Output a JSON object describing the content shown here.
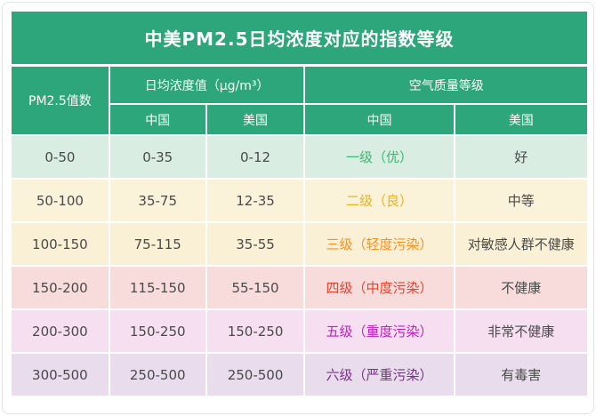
{
  "chart_data": {
    "type": "table",
    "title": "中美PM2.5日均浓度对应的指数等级",
    "header": {
      "pm25_col": "PM2.5值数",
      "concentration_group": "日均浓度值（μg/m³）",
      "quality_group": "空气质量等级",
      "conc_cn": "中国",
      "conc_us": "美国",
      "qual_cn": "中国",
      "qual_us": "美国"
    },
    "rows": [
      {
        "pm25": "0-50",
        "cn_conc": "0-35",
        "us_conc": "0-12",
        "cn_level": "一级（优）",
        "us_level": "好",
        "bg": "#d9ede3",
        "level_color": "#3cb873"
      },
      {
        "pm25": "50-100",
        "cn_conc": "35-75",
        "us_conc": "12-35",
        "cn_level": "二级（良）",
        "us_level": "中等",
        "bg": "#fbf2da",
        "level_color": "#e3b51f"
      },
      {
        "pm25": "100-150",
        "cn_conc": "75-115",
        "us_conc": "35-55",
        "cn_level": "三级（轻度污染）",
        "us_level": "对敏感人群不健康",
        "bg": "#faf0d6",
        "level_color": "#f6921e"
      },
      {
        "pm25": "150-200",
        "cn_conc": "115-150",
        "us_conc": "55-150",
        "cn_level": "四级（中度污染）",
        "us_level": "不健康",
        "bg": "#f8dcdc",
        "level_color": "#e8432a"
      },
      {
        "pm25": "200-300",
        "cn_conc": "150-250",
        "us_conc": "150-250",
        "cn_level": "五级（重度污染）",
        "us_level": "非常不健康",
        "bg": "#f5dff1",
        "level_color": "#bc22bc"
      },
      {
        "pm25": "300-500",
        "cn_conc": "250-500",
        "us_conc": "250-500",
        "cn_level": "六级（严重污染）",
        "us_level": "有毒害",
        "bg": "#e9dcec",
        "level_color": "#7b2f8a"
      }
    ],
    "colors": {
      "header_green": "#2ca67a",
      "header_text": "#ffffff",
      "body_text": "#4a4a4a",
      "separator": "#ffffff"
    }
  }
}
